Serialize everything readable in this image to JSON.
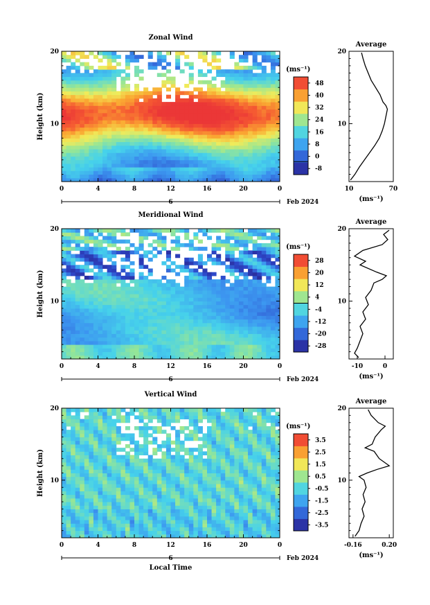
{
  "chart_data": [
    {
      "type": "heatmap",
      "title": "Zonal Wind",
      "xlabel": "",
      "ylabel": "Height (km)",
      "xlim": [
        0,
        24
      ],
      "ylim": [
        2,
        20
      ],
      "x_ticks": [
        "0",
        "4",
        "8",
        "12",
        "16",
        "20",
        "0"
      ],
      "y_ticks": [
        {
          "value": 10,
          "label": "10"
        },
        {
          "value": 20,
          "label": "20"
        }
      ],
      "date_value": "6",
      "date_label": "Feb 2024",
      "colorbar": {
        "unit": "(ms⁻¹)",
        "min": -8,
        "max": 52,
        "ticks": [
          "-8",
          "0",
          "8",
          "16",
          "24",
          "32",
          "40",
          "48"
        ],
        "zero_line": 0
      },
      "profile": {
        "title": "Average",
        "xlabel": "(ms⁻¹)",
        "xlim": [
          10,
          70
        ],
        "x_ticks": [
          "10",
          "70"
        ],
        "ylim": [
          2,
          20
        ],
        "y_ticks": [
          {
            "value": 10,
            "label": "10"
          },
          {
            "value": 20,
            "label": "20"
          }
        ],
        "height": [
          2.2,
          3.0,
          4.0,
          5.0,
          6.0,
          7.0,
          8.0,
          9.0,
          10.0,
          10.5,
          11.0,
          11.5,
          12.0,
          12.5,
          13.0,
          14.0,
          15.0,
          16.0,
          17.0,
          18.0,
          19.0,
          19.8
        ],
        "value": [
          12,
          18,
          24,
          31,
          38,
          45,
          51,
          55,
          58,
          59,
          60,
          61,
          62,
          60,
          56,
          52,
          46,
          40,
          36,
          32,
          29,
          27
        ]
      }
    },
    {
      "type": "heatmap",
      "title": "Meridional Wind",
      "xlabel": "",
      "ylabel": "Height (km)",
      "xlim": [
        0,
        24
      ],
      "ylim": [
        2,
        20
      ],
      "x_ticks": [
        "0",
        "4",
        "8",
        "12",
        "16",
        "20",
        "0"
      ],
      "y_ticks": [
        {
          "value": 10,
          "label": "10"
        },
        {
          "value": 20,
          "label": "20"
        }
      ],
      "date_value": "6",
      "date_label": "Feb 2024",
      "colorbar": {
        "unit": "(ms⁻¹)",
        "min": -28,
        "max": 28,
        "ticks": [
          "-28",
          "-20",
          "-12",
          "-4",
          "4",
          "12",
          "20",
          "28"
        ],
        "zero_line": 0
      },
      "profile": {
        "title": "Average",
        "xlabel": "(ms⁻¹)",
        "xlim": [
          -13,
          3
        ],
        "x_ticks": [
          "-10",
          "0"
        ],
        "ylim": [
          2,
          20
        ],
        "y_ticks": [
          {
            "value": 10,
            "label": "10"
          },
          {
            "value": 20,
            "label": "20"
          }
        ],
        "height": [
          2.2,
          2.8,
          3.5,
          4.5,
          5.5,
          6.5,
          7.5,
          8.5,
          9.5,
          10.5,
          11.5,
          12.5,
          13.0,
          13.5,
          14.0,
          15.0,
          15.5,
          16.2,
          17.0,
          17.8,
          18.5,
          19.2,
          19.8
        ],
        "value": [
          -9.5,
          -11,
          -10,
          -9,
          -8,
          -9,
          -7,
          -8,
          -6,
          -7,
          -5,
          -4,
          -1,
          0.5,
          -3,
          -9,
          -7,
          -11,
          -8,
          -1,
          1,
          -0.5,
          1.5
        ]
      }
    },
    {
      "type": "heatmap",
      "title": "Vertical Wind",
      "xlabel": "Local Time",
      "ylabel": "Height (km)",
      "xlim": [
        0,
        24
      ],
      "ylim": [
        2,
        20
      ],
      "x_ticks": [
        "0",
        "4",
        "8",
        "12",
        "16",
        "20",
        "0"
      ],
      "y_ticks": [
        {
          "value": 10,
          "label": "10"
        },
        {
          "value": 20,
          "label": "20"
        }
      ],
      "date_value": "6",
      "date_label": "Feb 2024",
      "colorbar": {
        "unit": "(ms⁻¹)",
        "min": -4,
        "max": 4,
        "ticks": [
          "-3.5",
          "-2.5",
          "-1.5",
          "-0.5",
          "0.5",
          "1.5",
          "2.5",
          "3.5"
        ],
        "zero_line": null
      },
      "profile": {
        "title": "Average",
        "xlabel": "(ms⁻¹)",
        "xlim": [
          -0.2,
          0.24
        ],
        "x_ticks": [
          "-0.16",
          "0.20"
        ],
        "ylim": [
          2,
          20
        ],
        "y_ticks": [
          {
            "value": 10,
            "label": "10"
          },
          {
            "value": 20,
            "label": "20"
          }
        ],
        "height": [
          2.2,
          3.0,
          4.0,
          5.0,
          6.0,
          7.0,
          8.0,
          9.0,
          10.0,
          10.5,
          11.0,
          11.5,
          12.0,
          13.0,
          14.0,
          14.5,
          15.0,
          16.0,
          17.0,
          17.5,
          18.0,
          19.0,
          19.8
        ],
        "value": [
          -0.14,
          -0.1,
          -0.08,
          -0.05,
          -0.07,
          -0.04,
          -0.06,
          -0.03,
          -0.05,
          -0.1,
          -0.02,
          0.08,
          0.2,
          0.1,
          0.05,
          -0.04,
          0.03,
          0.06,
          0.12,
          0.16,
          0.09,
          0.02,
          -0.01
        ]
      }
    }
  ]
}
